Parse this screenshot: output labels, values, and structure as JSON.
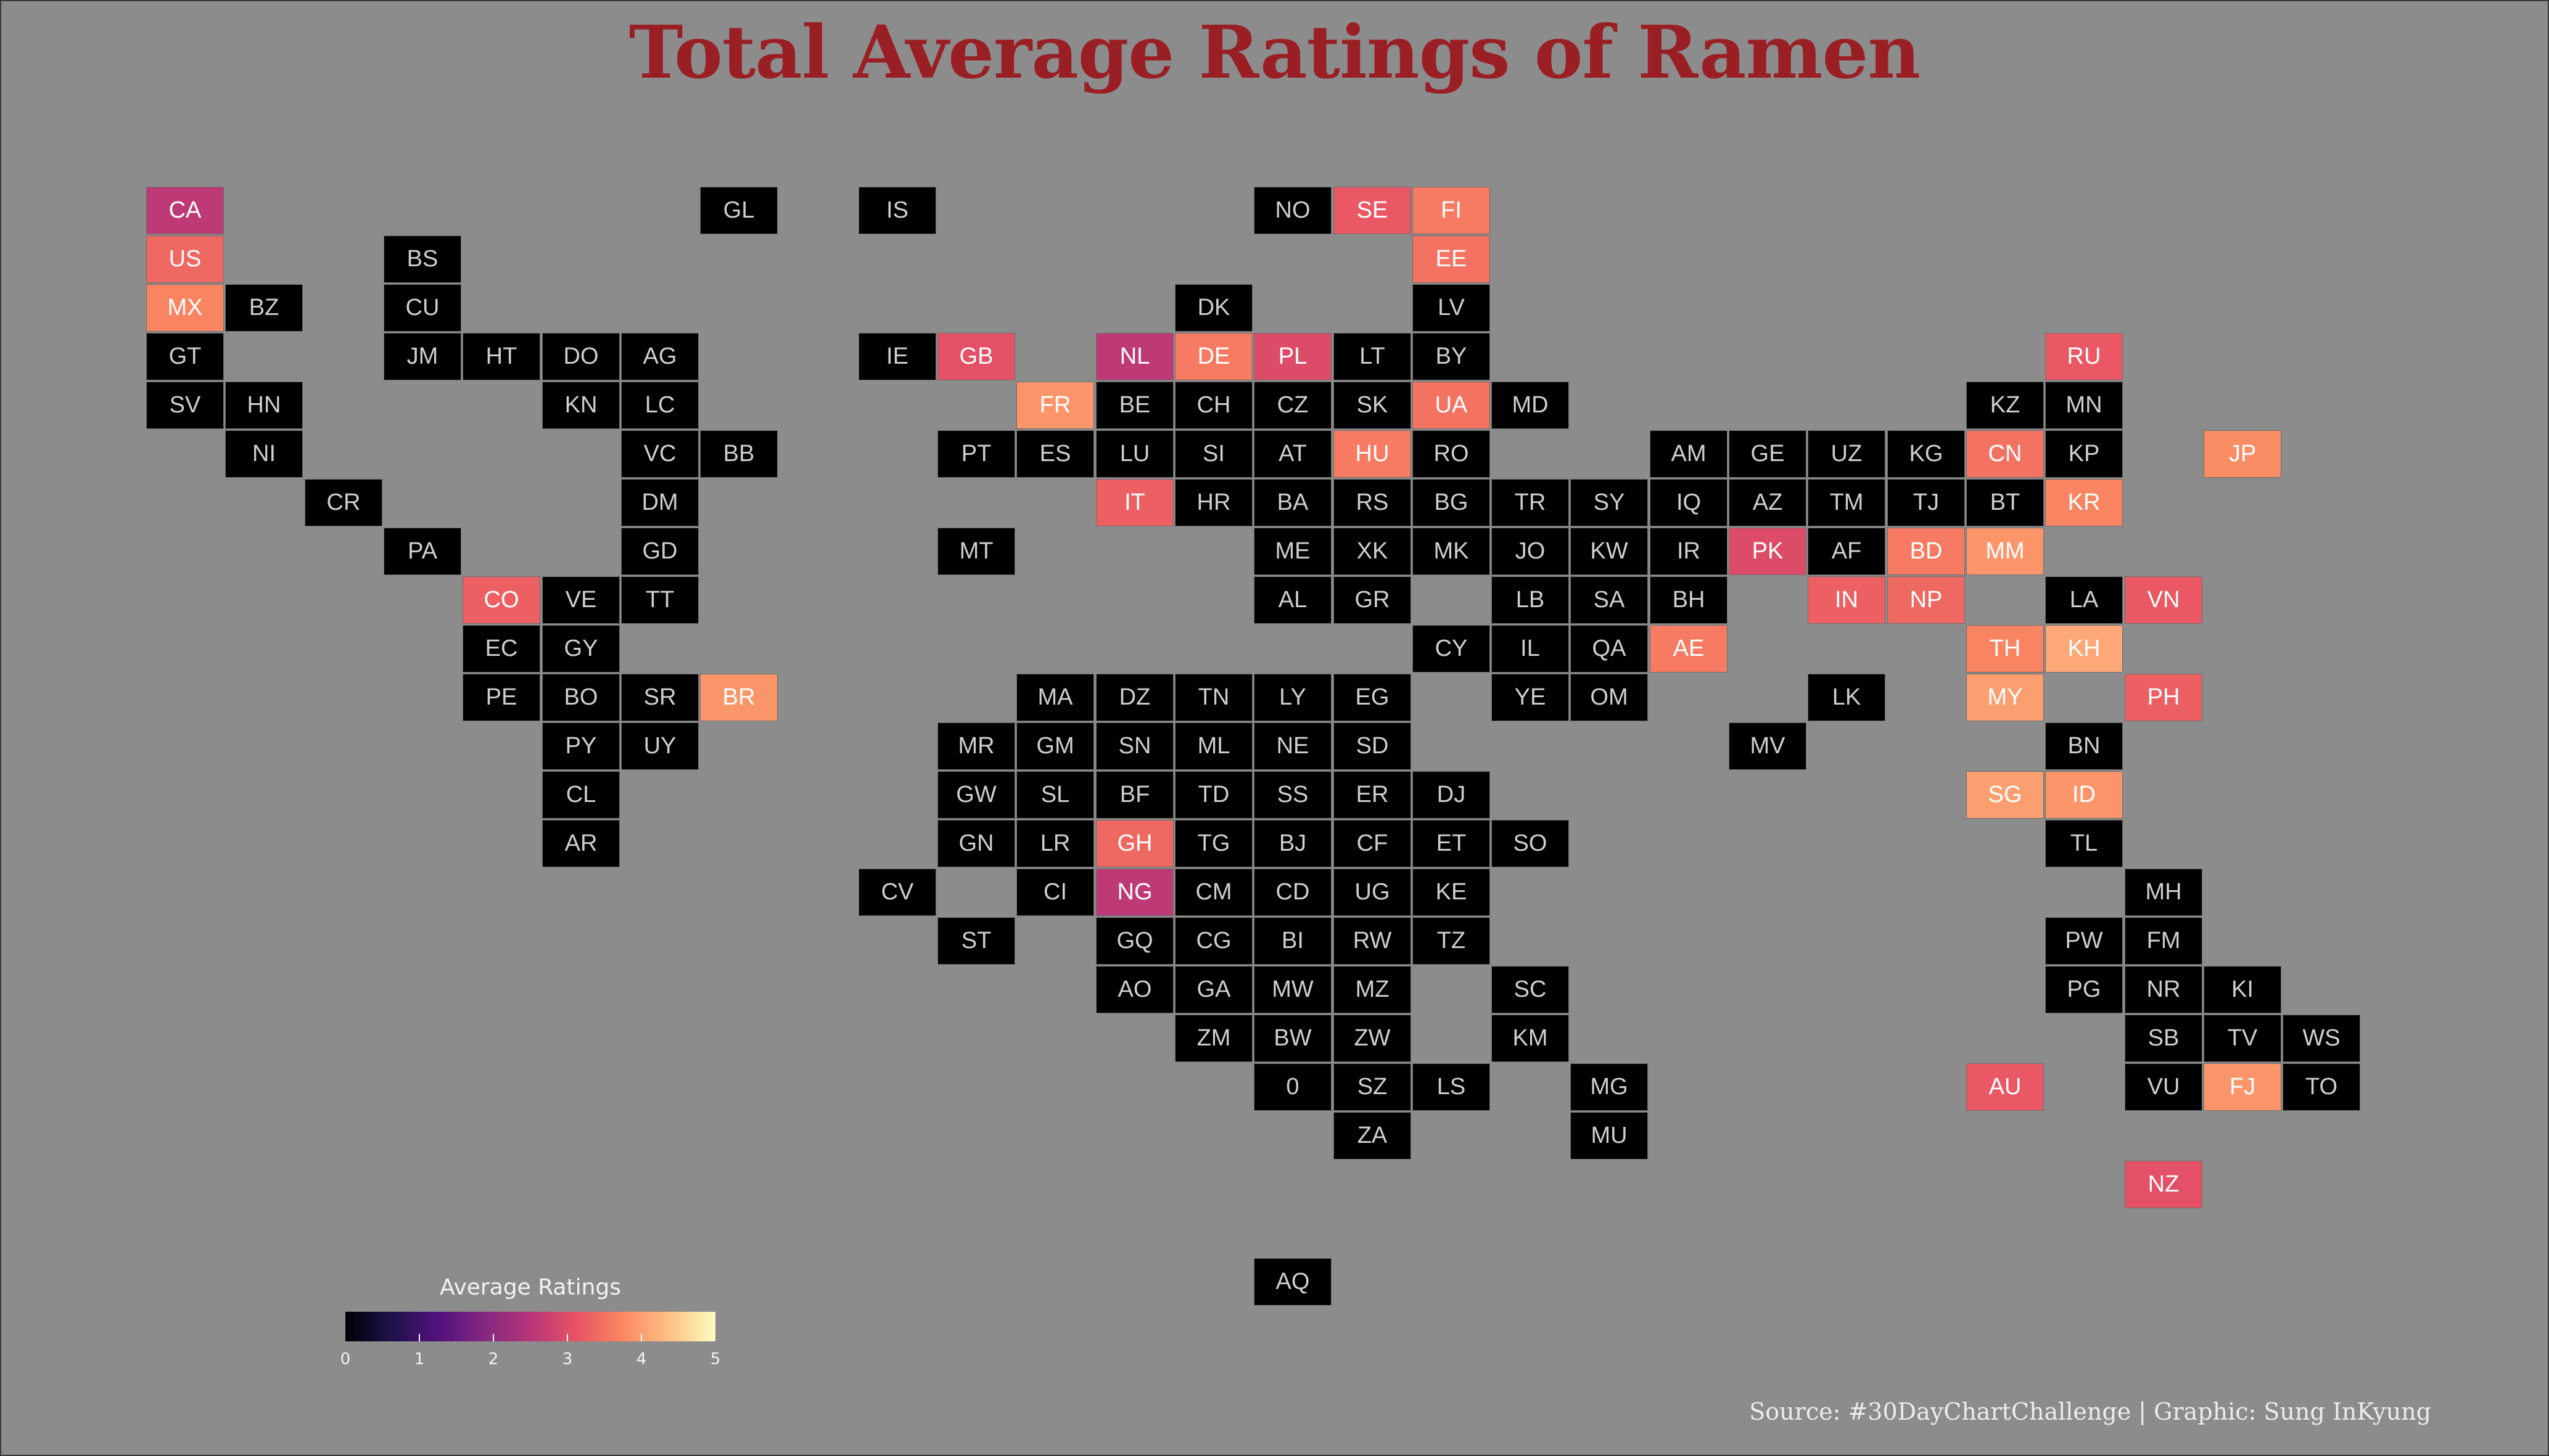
{
  "chart_data": {
    "type": "heatmap",
    "title": "Total Average Ratings of Ramen",
    "legend": {
      "title": "Average Ratings",
      "ticks": [
        "0",
        "1",
        "2",
        "3",
        "4",
        "5"
      ],
      "range": [
        0,
        5
      ],
      "colormap": "magma",
      "placement": "bottom-left"
    },
    "source": "Source: #30DayChartChallenge | Graphic: Sung InKyung",
    "tiles": [
      {
        "code": "CA",
        "row": 0,
        "col": 0,
        "rating": 2.6
      },
      {
        "code": "GL",
        "row": 0,
        "col": 7,
        "rating": null
      },
      {
        "code": "IS",
        "row": 0,
        "col": 9,
        "rating": null
      },
      {
        "code": "NO",
        "row": 0,
        "col": 14,
        "rating": null
      },
      {
        "code": "SE",
        "row": 0,
        "col": 15,
        "rating": 3.2
      },
      {
        "code": "FI",
        "row": 0,
        "col": 16,
        "rating": 3.6
      },
      {
        "code": "US",
        "row": 1,
        "col": 0,
        "rating": 3.4
      },
      {
        "code": "BS",
        "row": 1,
        "col": 3,
        "rating": null
      },
      {
        "code": "EE",
        "row": 1,
        "col": 16,
        "rating": 3.5
      },
      {
        "code": "MX",
        "row": 2,
        "col": 0,
        "rating": 3.7
      },
      {
        "code": "BZ",
        "row": 2,
        "col": 1,
        "rating": null
      },
      {
        "code": "CU",
        "row": 2,
        "col": 3,
        "rating": null
      },
      {
        "code": "DK",
        "row": 2,
        "col": 13,
        "rating": null
      },
      {
        "code": "LV",
        "row": 2,
        "col": 16,
        "rating": null
      },
      {
        "code": "GT",
        "row": 3,
        "col": 0,
        "rating": null
      },
      {
        "code": "JM",
        "row": 3,
        "col": 3,
        "rating": null
      },
      {
        "code": "HT",
        "row": 3,
        "col": 4,
        "rating": null
      },
      {
        "code": "DO",
        "row": 3,
        "col": 5,
        "rating": null
      },
      {
        "code": "AG",
        "row": 3,
        "col": 6,
        "rating": null
      },
      {
        "code": "IE",
        "row": 3,
        "col": 9,
        "rating": null
      },
      {
        "code": "GB",
        "row": 3,
        "col": 10,
        "rating": 3.1
      },
      {
        "code": "NL",
        "row": 3,
        "col": 12,
        "rating": 2.6
      },
      {
        "code": "DE",
        "row": 3,
        "col": 13,
        "rating": 3.6
      },
      {
        "code": "PL",
        "row": 3,
        "col": 14,
        "rating": 3.0
      },
      {
        "code": "LT",
        "row": 3,
        "col": 15,
        "rating": null
      },
      {
        "code": "BY",
        "row": 3,
        "col": 16,
        "rating": null
      },
      {
        "code": "RU",
        "row": 3,
        "col": 24,
        "rating": 3.2
      },
      {
        "code": "SV",
        "row": 4,
        "col": 0,
        "rating": null
      },
      {
        "code": "HN",
        "row": 4,
        "col": 1,
        "rating": null
      },
      {
        "code": "KN",
        "row": 4,
        "col": 5,
        "rating": null
      },
      {
        "code": "LC",
        "row": 4,
        "col": 6,
        "rating": null
      },
      {
        "code": "FR",
        "row": 4,
        "col": 11,
        "rating": 3.9
      },
      {
        "code": "BE",
        "row": 4,
        "col": 12,
        "rating": null
      },
      {
        "code": "CH",
        "row": 4,
        "col": 13,
        "rating": null
      },
      {
        "code": "CZ",
        "row": 4,
        "col": 14,
        "rating": null
      },
      {
        "code": "SK",
        "row": 4,
        "col": 15,
        "rating": null
      },
      {
        "code": "UA",
        "row": 4,
        "col": 16,
        "rating": 3.5
      },
      {
        "code": "MD",
        "row": 4,
        "col": 17,
        "rating": null
      },
      {
        "code": "KZ",
        "row": 4,
        "col": 23,
        "rating": null
      },
      {
        "code": "MN",
        "row": 4,
        "col": 24,
        "rating": null
      },
      {
        "code": "NI",
        "row": 5,
        "col": 1,
        "rating": null
      },
      {
        "code": "VC",
        "row": 5,
        "col": 6,
        "rating": null
      },
      {
        "code": "BB",
        "row": 5,
        "col": 7,
        "rating": null
      },
      {
        "code": "PT",
        "row": 5,
        "col": 10,
        "rating": null
      },
      {
        "code": "ES",
        "row": 5,
        "col": 11,
        "rating": null
      },
      {
        "code": "LU",
        "row": 5,
        "col": 12,
        "rating": null
      },
      {
        "code": "SI",
        "row": 5,
        "col": 13,
        "rating": null
      },
      {
        "code": "AT",
        "row": 5,
        "col": 14,
        "rating": null
      },
      {
        "code": "HU",
        "row": 5,
        "col": 15,
        "rating": 3.6
      },
      {
        "code": "RO",
        "row": 5,
        "col": 16,
        "rating": null
      },
      {
        "code": "AM",
        "row": 5,
        "col": 19,
        "rating": null
      },
      {
        "code": "GE",
        "row": 5,
        "col": 20,
        "rating": null
      },
      {
        "code": "UZ",
        "row": 5,
        "col": 21,
        "rating": null
      },
      {
        "code": "KG",
        "row": 5,
        "col": 22,
        "rating": null
      },
      {
        "code": "CN",
        "row": 5,
        "col": 23,
        "rating": 3.5
      },
      {
        "code": "KP",
        "row": 5,
        "col": 24,
        "rating": null
      },
      {
        "code": "JP",
        "row": 5,
        "col": 26,
        "rating": 3.8
      },
      {
        "code": "CR",
        "row": 6,
        "col": 2,
        "rating": null
      },
      {
        "code": "DM",
        "row": 6,
        "col": 6,
        "rating": null
      },
      {
        "code": "IT",
        "row": 6,
        "col": 12,
        "rating": 3.3
      },
      {
        "code": "HR",
        "row": 6,
        "col": 13,
        "rating": null
      },
      {
        "code": "BA",
        "row": 6,
        "col": 14,
        "rating": null
      },
      {
        "code": "RS",
        "row": 6,
        "col": 15,
        "rating": null
      },
      {
        "code": "BG",
        "row": 6,
        "col": 16,
        "rating": null
      },
      {
        "code": "TR",
        "row": 6,
        "col": 17,
        "rating": null
      },
      {
        "code": "SY",
        "row": 6,
        "col": 18,
        "rating": null
      },
      {
        "code": "IQ",
        "row": 6,
        "col": 19,
        "rating": null
      },
      {
        "code": "AZ",
        "row": 6,
        "col": 20,
        "rating": null
      },
      {
        "code": "TM",
        "row": 6,
        "col": 21,
        "rating": null
      },
      {
        "code": "TJ",
        "row": 6,
        "col": 22,
        "rating": null
      },
      {
        "code": "BT",
        "row": 6,
        "col": 23,
        "rating": null
      },
      {
        "code": "KR",
        "row": 6,
        "col": 24,
        "rating": 3.7
      },
      {
        "code": "PA",
        "row": 7,
        "col": 3,
        "rating": null
      },
      {
        "code": "GD",
        "row": 7,
        "col": 6,
        "rating": null
      },
      {
        "code": "MT",
        "row": 7,
        "col": 10,
        "rating": null
      },
      {
        "code": "ME",
        "row": 7,
        "col": 14,
        "rating": null
      },
      {
        "code": "XK",
        "row": 7,
        "col": 15,
        "rating": null
      },
      {
        "code": "MK",
        "row": 7,
        "col": 16,
        "rating": null
      },
      {
        "code": "JO",
        "row": 7,
        "col": 17,
        "rating": null
      },
      {
        "code": "KW",
        "row": 7,
        "col": 18,
        "rating": null
      },
      {
        "code": "IR",
        "row": 7,
        "col": 19,
        "rating": null
      },
      {
        "code": "PK",
        "row": 7,
        "col": 20,
        "rating": 3.0
      },
      {
        "code": "AF",
        "row": 7,
        "col": 21,
        "rating": null
      },
      {
        "code": "BD",
        "row": 7,
        "col": 22,
        "rating": 3.6
      },
      {
        "code": "MM",
        "row": 7,
        "col": 23,
        "rating": 3.9
      },
      {
        "code": "CO",
        "row": 8,
        "col": 4,
        "rating": 3.3
      },
      {
        "code": "VE",
        "row": 8,
        "col": 5,
        "rating": null
      },
      {
        "code": "TT",
        "row": 8,
        "col": 6,
        "rating": null
      },
      {
        "code": "AL",
        "row": 8,
        "col": 14,
        "rating": null
      },
      {
        "code": "GR",
        "row": 8,
        "col": 15,
        "rating": null
      },
      {
        "code": "LB",
        "row": 8,
        "col": 17,
        "rating": null
      },
      {
        "code": "SA",
        "row": 8,
        "col": 18,
        "rating": null
      },
      {
        "code": "BH",
        "row": 8,
        "col": 19,
        "rating": null
      },
      {
        "code": "IN",
        "row": 8,
        "col": 21,
        "rating": 3.3
      },
      {
        "code": "NP",
        "row": 8,
        "col": 22,
        "rating": 3.4
      },
      {
        "code": "LA",
        "row": 8,
        "col": 24,
        "rating": null
      },
      {
        "code": "VN",
        "row": 8,
        "col": 25,
        "rating": 3.2
      },
      {
        "code": "EC",
        "row": 9,
        "col": 4,
        "rating": null
      },
      {
        "code": "GY",
        "row": 9,
        "col": 5,
        "rating": null
      },
      {
        "code": "CY",
        "row": 9,
        "col": 16,
        "rating": null
      },
      {
        "code": "IL",
        "row": 9,
        "col": 17,
        "rating": null
      },
      {
        "code": "QA",
        "row": 9,
        "col": 18,
        "rating": null
      },
      {
        "code": "AE",
        "row": 9,
        "col": 19,
        "rating": 3.6
      },
      {
        "code": "TH",
        "row": 9,
        "col": 23,
        "rating": 3.7
      },
      {
        "code": "KH",
        "row": 9,
        "col": 24,
        "rating": 4.1
      },
      {
        "code": "PE",
        "row": 10,
        "col": 4,
        "rating": null
      },
      {
        "code": "BO",
        "row": 10,
        "col": 5,
        "rating": null
      },
      {
        "code": "SR",
        "row": 10,
        "col": 6,
        "rating": null
      },
      {
        "code": "BR",
        "row": 10,
        "col": 7,
        "rating": 3.9
      },
      {
        "code": "MA",
        "row": 10,
        "col": 11,
        "rating": null
      },
      {
        "code": "DZ",
        "row": 10,
        "col": 12,
        "rating": null
      },
      {
        "code": "TN",
        "row": 10,
        "col": 13,
        "rating": null
      },
      {
        "code": "LY",
        "row": 10,
        "col": 14,
        "rating": null
      },
      {
        "code": "EG",
        "row": 10,
        "col": 15,
        "rating": null
      },
      {
        "code": "YE",
        "row": 10,
        "col": 17,
        "rating": null
      },
      {
        "code": "OM",
        "row": 10,
        "col": 18,
        "rating": null
      },
      {
        "code": "LK",
        "row": 10,
        "col": 21,
        "rating": null
      },
      {
        "code": "MY",
        "row": 10,
        "col": 23,
        "rating": 4.0
      },
      {
        "code": "PH",
        "row": 10,
        "col": 25,
        "rating": 3.3
      },
      {
        "code": "PY",
        "row": 11,
        "col": 5,
        "rating": null
      },
      {
        "code": "UY",
        "row": 11,
        "col": 6,
        "rating": null
      },
      {
        "code": "MR",
        "row": 11,
        "col": 10,
        "rating": null
      },
      {
        "code": "GM",
        "row": 11,
        "col": 11,
        "rating": null
      },
      {
        "code": "SN",
        "row": 11,
        "col": 12,
        "rating": null
      },
      {
        "code": "ML",
        "row": 11,
        "col": 13,
        "rating": null
      },
      {
        "code": "NE",
        "row": 11,
        "col": 14,
        "rating": null
      },
      {
        "code": "SD",
        "row": 11,
        "col": 15,
        "rating": null
      },
      {
        "code": "MV",
        "row": 11,
        "col": 20,
        "rating": null
      },
      {
        "code": "BN",
        "row": 11,
        "col": 24,
        "rating": null
      },
      {
        "code": "CL",
        "row": 12,
        "col": 5,
        "rating": null
      },
      {
        "code": "GW",
        "row": 12,
        "col": 10,
        "rating": null
      },
      {
        "code": "SL",
        "row": 12,
        "col": 11,
        "rating": null
      },
      {
        "code": "BF",
        "row": 12,
        "col": 12,
        "rating": null
      },
      {
        "code": "TD",
        "row": 12,
        "col": 13,
        "rating": null
      },
      {
        "code": "SS",
        "row": 12,
        "col": 14,
        "rating": null
      },
      {
        "code": "ER",
        "row": 12,
        "col": 15,
        "rating": null
      },
      {
        "code": "DJ",
        "row": 12,
        "col": 16,
        "rating": null
      },
      {
        "code": "SG",
        "row": 12,
        "col": 23,
        "rating": 4.0
      },
      {
        "code": "ID",
        "row": 12,
        "col": 24,
        "rating": 3.9
      },
      {
        "code": "AR",
        "row": 13,
        "col": 5,
        "rating": null
      },
      {
        "code": "GN",
        "row": 13,
        "col": 10,
        "rating": null
      },
      {
        "code": "LR",
        "row": 13,
        "col": 11,
        "rating": null
      },
      {
        "code": "GH",
        "row": 13,
        "col": 12,
        "rating": 3.4
      },
      {
        "code": "TG",
        "row": 13,
        "col": 13,
        "rating": null
      },
      {
        "code": "BJ",
        "row": 13,
        "col": 14,
        "rating": null
      },
      {
        "code": "CF",
        "row": 13,
        "col": 15,
        "rating": null
      },
      {
        "code": "ET",
        "row": 13,
        "col": 16,
        "rating": null
      },
      {
        "code": "SO",
        "row": 13,
        "col": 17,
        "rating": null
      },
      {
        "code": "TL",
        "row": 13,
        "col": 24,
        "rating": null
      },
      {
        "code": "CV",
        "row": 14,
        "col": 9,
        "rating": null
      },
      {
        "code": "CI",
        "row": 14,
        "col": 11,
        "rating": null
      },
      {
        "code": "NG",
        "row": 14,
        "col": 12,
        "rating": 2.6
      },
      {
        "code": "CM",
        "row": 14,
        "col": 13,
        "rating": null
      },
      {
        "code": "CD",
        "row": 14,
        "col": 14,
        "rating": null
      },
      {
        "code": "UG",
        "row": 14,
        "col": 15,
        "rating": null
      },
      {
        "code": "KE",
        "row": 14,
        "col": 16,
        "rating": null
      },
      {
        "code": "MH",
        "row": 14,
        "col": 25,
        "rating": null
      },
      {
        "code": "ST",
        "row": 15,
        "col": 10,
        "rating": null
      },
      {
        "code": "GQ",
        "row": 15,
        "col": 12,
        "rating": null
      },
      {
        "code": "CG",
        "row": 15,
        "col": 13,
        "rating": null
      },
      {
        "code": "BI",
        "row": 15,
        "col": 14,
        "rating": null
      },
      {
        "code": "RW",
        "row": 15,
        "col": 15,
        "rating": null
      },
      {
        "code": "TZ",
        "row": 15,
        "col": 16,
        "rating": null
      },
      {
        "code": "PW",
        "row": 15,
        "col": 24,
        "rating": null
      },
      {
        "code": "FM",
        "row": 15,
        "col": 25,
        "rating": null
      },
      {
        "code": "AO",
        "row": 16,
        "col": 12,
        "rating": null
      },
      {
        "code": "GA",
        "row": 16,
        "col": 13,
        "rating": null
      },
      {
        "code": "MW",
        "row": 16,
        "col": 14,
        "rating": null
      },
      {
        "code": "MZ",
        "row": 16,
        "col": 15,
        "rating": null
      },
      {
        "code": "SC",
        "row": 16,
        "col": 17,
        "rating": null
      },
      {
        "code": "PG",
        "row": 16,
        "col": 24,
        "rating": null
      },
      {
        "code": "NR",
        "row": 16,
        "col": 25,
        "rating": null
      },
      {
        "code": "KI",
        "row": 16,
        "col": 26,
        "rating": null
      },
      {
        "code": "ZM",
        "row": 17,
        "col": 13,
        "rating": null
      },
      {
        "code": "BW",
        "row": 17,
        "col": 14,
        "rating": null
      },
      {
        "code": "ZW",
        "row": 17,
        "col": 15,
        "rating": null
      },
      {
        "code": "KM",
        "row": 17,
        "col": 17,
        "rating": null
      },
      {
        "code": "SB",
        "row": 17,
        "col": 25,
        "rating": null
      },
      {
        "code": "TV",
        "row": 17,
        "col": 26,
        "rating": null
      },
      {
        "code": "WS",
        "row": 17,
        "col": 27,
        "rating": null
      },
      {
        "code": "0",
        "row": 18,
        "col": 14,
        "rating": null
      },
      {
        "code": "SZ",
        "row": 18,
        "col": 15,
        "rating": null
      },
      {
        "code": "LS",
        "row": 18,
        "col": 16,
        "rating": null
      },
      {
        "code": "MG",
        "row": 18,
        "col": 18,
        "rating": null
      },
      {
        "code": "AU",
        "row": 18,
        "col": 23,
        "rating": 3.2
      },
      {
        "code": "VU",
        "row": 18,
        "col": 25,
        "rating": null
      },
      {
        "code": "FJ",
        "row": 18,
        "col": 26,
        "rating": 3.9
      },
      {
        "code": "TO",
        "row": 18,
        "col": 27,
        "rating": null
      },
      {
        "code": "ZA",
        "row": 19,
        "col": 15,
        "rating": null
      },
      {
        "code": "MU",
        "row": 19,
        "col": 18,
        "rating": null
      },
      {
        "code": "NZ",
        "row": 20,
        "col": 25,
        "rating": 3.1
      },
      {
        "code": "AQ",
        "row": 22,
        "col": 14,
        "rating": null
      }
    ]
  }
}
